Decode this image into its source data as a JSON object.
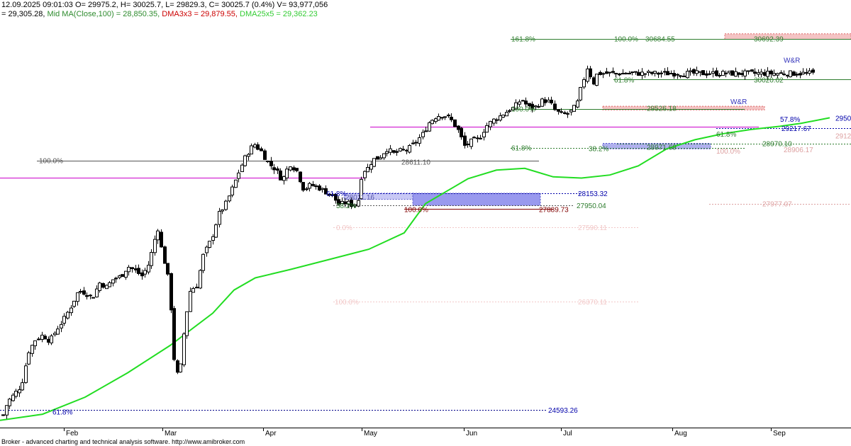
{
  "header": {
    "line1": "12.09.2025 09:01:03 O= 29975.2, H= 30025.7, L= 29829.3, C= 30025.7 (0.4%) V= 93,977,056",
    "line2_prefix": "= 29,305.28, ",
    "mid_ma": "Mid MA(Close,100) = 28,850.35, ",
    "dma3x3": "DMA3x3 = 29,879.55, ",
    "dma25x5": "DMA25x5 = 29,362.23",
    "colors": {
      "text": "#000000",
      "mid_ma": "#2e8b2e",
      "dma3x3": "#cc0000",
      "dma25x5": "#33cc33"
    }
  },
  "footer": "Broker - advanced charting and technical analysis software. http://www.amibroker.com",
  "chart_data": {
    "type": "candlestick",
    "y_range": [
      24300,
      31000
    ],
    "x_range_months": [
      "Feb",
      "Mar",
      "Apr",
      "May",
      "Jun",
      "Jul",
      "Aug",
      "Sep"
    ],
    "x_tick_labels": [
      "Feb",
      "Mar",
      "Apr",
      "May",
      "Jun",
      "Jul",
      "Aug",
      "Sep"
    ],
    "ohlc_anchor_closes": [
      [
        1,
        24400
      ],
      [
        10,
        24720
      ],
      [
        20,
        24850
      ],
      [
        30,
        25000
      ],
      [
        40,
        25550
      ],
      [
        50,
        25750
      ],
      [
        60,
        25820
      ],
      [
        70,
        25720
      ],
      [
        80,
        25920
      ],
      [
        90,
        26080
      ],
      [
        100,
        26300
      ],
      [
        110,
        26540
      ],
      [
        120,
        26520
      ],
      [
        130,
        26420
      ],
      [
        140,
        26680
      ],
      [
        150,
        26610
      ],
      [
        160,
        26750
      ],
      [
        170,
        26780
      ],
      [
        180,
        26950
      ],
      [
        190,
        26880
      ],
      [
        200,
        26790
      ],
      [
        210,
        27000
      ],
      [
        222,
        27600
      ],
      [
        227,
        27250
      ],
      [
        232,
        27000
      ],
      [
        239,
        26620
      ],
      [
        244,
        25500
      ],
      [
        252,
        25050
      ],
      [
        260,
        25980
      ],
      [
        268,
        26550
      ],
      [
        278,
        26650
      ],
      [
        285,
        27100
      ],
      [
        298,
        27400
      ],
      [
        308,
        27800
      ],
      [
        318,
        27980
      ],
      [
        328,
        28250
      ],
      [
        338,
        28550
      ],
      [
        348,
        28800
      ],
      [
        358,
        28960
      ],
      [
        368,
        28840
      ],
      [
        378,
        28640
      ],
      [
        388,
        28550
      ],
      [
        398,
        28360
      ],
      [
        408,
        28640
      ],
      [
        418,
        28520
      ],
      [
        428,
        28210
      ],
      [
        438,
        28290
      ],
      [
        448,
        28250
      ],
      [
        458,
        28180
      ],
      [
        468,
        28110
      ],
      [
        478,
        27960
      ],
      [
        488,
        28000
      ],
      [
        498,
        27950
      ],
      [
        505,
        28050
      ],
      [
        510,
        28510
      ],
      [
        518,
        28560
      ],
      [
        525,
        28700
      ],
      [
        535,
        28740
      ],
      [
        545,
        28880
      ],
      [
        555,
        28800
      ],
      [
        565,
        28850
      ],
      [
        575,
        28870
      ],
      [
        585,
        28980
      ],
      [
        595,
        29110
      ],
      [
        605,
        29320
      ],
      [
        615,
        29420
      ],
      [
        625,
        29440
      ],
      [
        635,
        29370
      ],
      [
        645,
        29200
      ],
      [
        655,
        28920
      ],
      [
        665,
        29010
      ],
      [
        675,
        29040
      ],
      [
        685,
        29250
      ],
      [
        695,
        29350
      ],
      [
        705,
        29420
      ],
      [
        715,
        29500
      ],
      [
        725,
        29560
      ],
      [
        735,
        29700
      ],
      [
        745,
        29560
      ],
      [
        755,
        29570
      ],
      [
        765,
        29680
      ],
      [
        775,
        29650
      ],
      [
        783,
        29500
      ],
      [
        793,
        29440
      ],
      [
        803,
        29470
      ],
      [
        813,
        29600
      ],
      [
        820,
        29920
      ],
      [
        828,
        30230
      ],
      [
        836,
        29950
      ],
      [
        842,
        30120
      ]
    ],
    "mid_ma_series": {
      "name": "Mid MA(Close,100)",
      "color": "#22dd22",
      "points": [
        [
          0,
          24420
        ],
        [
          60,
          24520
        ],
        [
          120,
          24800
        ],
        [
          180,
          25200
        ],
        [
          240,
          25650
        ],
        [
          300,
          26180
        ],
        [
          330,
          26560
        ],
        [
          360,
          26760
        ],
        [
          410,
          26900
        ],
        [
          460,
          27050
        ],
        [
          520,
          27230
        ],
        [
          570,
          27500
        ],
        [
          600,
          27980
        ],
        [
          625,
          28150
        ],
        [
          660,
          28390
        ],
        [
          700,
          28530
        ],
        [
          740,
          28560
        ],
        [
          780,
          28420
        ],
        [
          820,
          28400
        ],
        [
          860,
          28450
        ],
        [
          900,
          28600
        ],
        [
          940,
          28880
        ],
        [
          980,
          29030
        ],
        [
          1020,
          29130
        ],
        [
          1060,
          29200
        ],
        [
          1100,
          29250
        ],
        [
          1130,
          29300
        ],
        [
          1170,
          29390
        ]
      ]
    },
    "horizontal_levels": [
      {
        "y": 28410,
        "x_from": 0,
        "x_to": 515,
        "color": "#cc00cc",
        "style": "solid"
      },
      {
        "y": 29240,
        "x_from": 522,
        "x_to": 1070,
        "color": "#cc00cc",
        "style": "solid"
      },
      {
        "y": 28690,
        "x_from": 52,
        "x_to": 760,
        "color": "#555555",
        "style": "solid"
      },
      {
        "y": 24590,
        "x_from": 0,
        "x_to": 770,
        "color": "#000088",
        "style": "dotted"
      },
      {
        "y": 28150,
        "x_from": 460,
        "x_to": 820,
        "color": "#0000aa",
        "style": "dotted"
      },
      {
        "y": 27950,
        "x_from": 470,
        "x_to": 810,
        "color": "#555555",
        "style": "dotted"
      },
      {
        "y": 27890,
        "x_from": 570,
        "x_to": 780,
        "color": "#800000",
        "style": "solid"
      },
      {
        "y": 30690,
        "x_from": 720,
        "x_to": 1200,
        "color": "#2e7d2e",
        "style": "solid"
      },
      {
        "y": 29540,
        "x_from": 720,
        "x_to": 1050,
        "color": "#2e7d2e",
        "style": "solid"
      },
      {
        "y": 28900,
        "x_from": 720,
        "x_to": 1050,
        "color": "#2e7d2e",
        "style": "dotted"
      },
      {
        "y": 30020,
        "x_from": 865,
        "x_to": 1200,
        "color": "#2e7d2e",
        "style": "solid"
      },
      {
        "y": 29220,
        "x_from": 1010,
        "x_to": 1200,
        "color": "#0000aa",
        "style": "dotted"
      },
      {
        "y": 28970,
        "x_from": 870,
        "x_to": 1200,
        "color": "#2e7d2e",
        "style": "dotted"
      },
      {
        "y": 27980,
        "x_from": 1000,
        "x_to": 1200,
        "color": "#dda0a0",
        "style": "dotted"
      },
      {
        "y": 27590,
        "x_from": 470,
        "x_to": 900,
        "color": "#f2c8c8",
        "style": "dotted"
      },
      {
        "y": 26370,
        "x_from": 470,
        "x_to": 900,
        "color": "#f2c8c8",
        "style": "dotted"
      }
    ],
    "zones": [
      {
        "y_top": 28150,
        "y_bottom": 27950,
        "x_from": 582,
        "x_to": 762,
        "fill": "#9999ee",
        "stroke": "#5555cc"
      },
      {
        "y_top": 28150,
        "y_bottom": 28050,
        "x_from": 485,
        "x_to": 582,
        "fill": "#c8c8f5",
        "stroke": "#5555cc"
      },
      {
        "y_top": 28970,
        "y_bottom": 28880,
        "x_from": 850,
        "x_to": 1002,
        "fill": "#b0b0ee",
        "stroke": "#5555cc"
      },
      {
        "y_top": 29580,
        "y_bottom": 29520,
        "x_from": 850,
        "x_to": 1078,
        "fill": "#f4c4c4",
        "stroke": "#dd6666"
      },
      {
        "y_top": 30770,
        "y_bottom": 30680,
        "x_from": 1022,
        "x_to": 1200,
        "fill": "#f4c4c4",
        "stroke": "#dd6666"
      }
    ],
    "annotations": [
      {
        "text": "100.0%",
        "x": 55,
        "y": 28690,
        "color": "#555555"
      },
      {
        "text": "61.8%",
        "x": 460,
        "y": 28150,
        "color": "#0000aa"
      },
      {
        "text": "38.2%",
        "x": 474,
        "y": 27955,
        "color": "#2e7d2e"
      },
      {
        "text": "28011.16",
        "x": 487,
        "y": 28090,
        "color": "#5555aa"
      },
      {
        "text": "28611.10",
        "x": 566,
        "y": 28670,
        "color": "#555555"
      },
      {
        "text": "100.0%",
        "x": 570,
        "y": 27890,
        "color": "#800000"
      },
      {
        "text": "27889.73",
        "x": 760,
        "y": 27890,
        "color": "#800000"
      },
      {
        "text": "27950.04",
        "x": 813,
        "y": 27950,
        "color": "#2e7d2e"
      },
      {
        "text": "28153.32",
        "x": 815,
        "y": 28150,
        "color": "#0000aa"
      },
      {
        "text": "27590.11",
        "x": 815,
        "y": 27590,
        "color": "#f2c8c8"
      },
      {
        "text": "26370.11",
        "x": 815,
        "y": 26370,
        "color": "#f2c8c8"
      },
      {
        "text": "100.0%",
        "x": 472,
        "y": 26370,
        "color": "#f2c8c8"
      },
      {
        "text": "0.0%",
        "x": 474,
        "y": 27590,
        "color": "#f2c8c8"
      },
      {
        "text": "24593.26",
        "x": 773,
        "y": 24590,
        "color": "#0000aa"
      },
      {
        "text": "61.8%",
        "x": 74,
        "y": 24560,
        "color": "#0000aa"
      },
      {
        "text": "161.8%",
        "x": 721,
        "y": 30690,
        "color": "#2e7d2e"
      },
      {
        "text": "100.0%",
        "x": 866,
        "y": 30690,
        "color": "#2e7d2e"
      },
      {
        "text": "30684.55",
        "x": 910,
        "y": 30690,
        "color": "#2e7d2e"
      },
      {
        "text": "30692.39",
        "x": 1063,
        "y": 30690,
        "color": "#2e7d2e"
      },
      {
        "text": "100.0%",
        "x": 721,
        "y": 29540,
        "color": "#2e7d2e"
      },
      {
        "text": "61.8%",
        "x": 721,
        "y": 28900,
        "color": "#2e7d2e"
      },
      {
        "text": "38.2%",
        "x": 830,
        "y": 28890,
        "color": "#2e7d2e"
      },
      {
        "text": "28971.69",
        "x": 912,
        "y": 28910,
        "color": "#2e7d2e"
      },
      {
        "text": "29526.18",
        "x": 912,
        "y": 29550,
        "color": "#2e7d2e"
      },
      {
        "text": "61.8%",
        "x": 866,
        "y": 30020,
        "color": "#2e7d2e"
      },
      {
        "text": "30020.02",
        "x": 1063,
        "y": 30020,
        "color": "#2e7d2e"
      },
      {
        "text": "W&R",
        "x": 1030,
        "y": 29660,
        "color": "#3333bb"
      },
      {
        "text": "W&R",
        "x": 1105,
        "y": 30340,
        "color": "#3333bb"
      },
      {
        "text": "61.8%",
        "x": 1010,
        "y": 29130,
        "color": "#2e7d2e"
      },
      {
        "text": "57.8%",
        "x": 1100,
        "y": 29370,
        "color": "#0000aa"
      },
      {
        "text": "29217.67",
        "x": 1102,
        "y": 29220,
        "color": "#0000aa"
      },
      {
        "text": "28970.10",
        "x": 1075,
        "y": 28970,
        "color": "#2e7d2e"
      },
      {
        "text": "100.0%",
        "x": 1010,
        "y": 28850,
        "color": "#dda0a0"
      },
      {
        "text": "28906.17",
        "x": 1105,
        "y": 28870,
        "color": "#dda0a0"
      },
      {
        "text": "27977.07",
        "x": 1075,
        "y": 27980,
        "color": "#dda0a0"
      },
      {
        "text": "2950",
        "x": 1178,
        "y": 29390,
        "color": "#0000aa"
      },
      {
        "text": "2912",
        "x": 1178,
        "y": 29100,
        "color": "#dda0a0"
      }
    ]
  }
}
